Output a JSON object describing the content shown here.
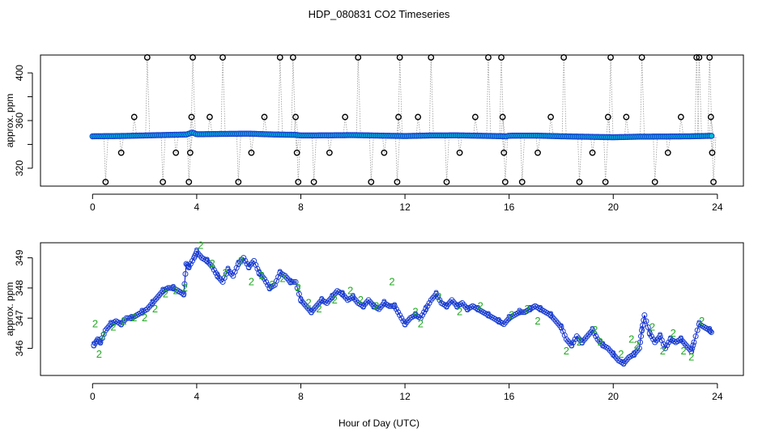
{
  "title": "HDP_080831  CO2 Timeseries",
  "xlabel": "Hour of Day (UTC)",
  "chart_data": [
    {
      "type": "scatter",
      "ylabel": "approx. ppm",
      "xlim": [
        -2,
        25
      ],
      "ylim": [
        305,
        415
      ],
      "xticks": [
        0,
        4,
        8,
        12,
        16,
        20,
        24
      ],
      "yticks": [
        320,
        340,
        360,
        380,
        400
      ],
      "ytick_labels": [
        "320",
        "",
        "360",
        "",
        "400"
      ],
      "colors": {
        "main": "#1a3fd0",
        "fill": "#00bcd4",
        "outlier": "#000000",
        "line": "#9a9a9a"
      },
      "baseline": [
        [
          0.0,
          346.8
        ],
        [
          1.0,
          347.0
        ],
        [
          2.0,
          347.5
        ],
        [
          3.0,
          348.0
        ],
        [
          3.6,
          348.3
        ],
        [
          3.85,
          350.0
        ],
        [
          4.0,
          348.5
        ],
        [
          5.0,
          348.8
        ],
        [
          6.0,
          349.0
        ],
        [
          7.0,
          348.3
        ],
        [
          7.8,
          348.0
        ],
        [
          8.0,
          347.5
        ],
        [
          9.0,
          347.6
        ],
        [
          10.0,
          347.8
        ],
        [
          11.0,
          347.4
        ],
        [
          12.0,
          347.0
        ],
        [
          13.0,
          347.5
        ],
        [
          14.0,
          347.6
        ],
        [
          15.0,
          347.2
        ],
        [
          15.9,
          346.8
        ],
        [
          16.0,
          347.3
        ],
        [
          17.0,
          347.4
        ],
        [
          18.0,
          346.8
        ],
        [
          19.0,
          346.4
        ],
        [
          20.0,
          346.0
        ],
        [
          21.0,
          346.5
        ],
        [
          22.0,
          346.6
        ],
        [
          23.0,
          346.8
        ],
        [
          23.8,
          347.2
        ]
      ],
      "outliers": [
        [
          0.5,
          308.5
        ],
        [
          1.1,
          333
        ],
        [
          1.6,
          363
        ],
        [
          2.1,
          413
        ],
        [
          2.7,
          308.5
        ],
        [
          3.2,
          333
        ],
        [
          3.7,
          308.5
        ],
        [
          3.75,
          333
        ],
        [
          3.8,
          363
        ],
        [
          3.85,
          413
        ],
        [
          4.5,
          363
        ],
        [
          5.0,
          413
        ],
        [
          5.6,
          308.5
        ],
        [
          6.1,
          333
        ],
        [
          6.6,
          363
        ],
        [
          7.2,
          413
        ],
        [
          7.7,
          413
        ],
        [
          7.8,
          363
        ],
        [
          7.85,
          333
        ],
        [
          7.9,
          308.5
        ],
        [
          8.5,
          308.5
        ],
        [
          9.1,
          333
        ],
        [
          9.7,
          363
        ],
        [
          10.2,
          413
        ],
        [
          10.7,
          308.5
        ],
        [
          11.2,
          333
        ],
        [
          11.7,
          308.5
        ],
        [
          11.75,
          363
        ],
        [
          11.8,
          413
        ],
        [
          12.5,
          363
        ],
        [
          13.0,
          413
        ],
        [
          13.6,
          308.5
        ],
        [
          14.1,
          333
        ],
        [
          14.7,
          363
        ],
        [
          15.2,
          413
        ],
        [
          15.7,
          413
        ],
        [
          15.75,
          363
        ],
        [
          15.8,
          333
        ],
        [
          15.85,
          308.5
        ],
        [
          16.5,
          308.5
        ],
        [
          17.1,
          333
        ],
        [
          17.6,
          363
        ],
        [
          18.1,
          413
        ],
        [
          18.7,
          308.5
        ],
        [
          19.2,
          333
        ],
        [
          19.7,
          308.5
        ],
        [
          19.8,
          363
        ],
        [
          19.9,
          413
        ],
        [
          20.5,
          363
        ],
        [
          21.1,
          413
        ],
        [
          21.6,
          308.5
        ],
        [
          22.1,
          333
        ],
        [
          22.6,
          363
        ],
        [
          23.2,
          413
        ],
        [
          23.3,
          413
        ],
        [
          23.7,
          413
        ],
        [
          23.75,
          363
        ],
        [
          23.8,
          333
        ],
        [
          23.85,
          308.5
        ]
      ]
    },
    {
      "type": "line",
      "ylabel": "approx. ppm",
      "xlim": [
        -2,
        25
      ],
      "ylim": [
        345.1,
        349.5
      ],
      "xticks": [
        0,
        4,
        8,
        12,
        16,
        20,
        24
      ],
      "yticks": [
        346,
        347,
        348,
        349
      ],
      "colors": {
        "label3": "#1a3fd0",
        "label2": "#22aa22",
        "line": "#0000cc"
      },
      "series": [
        {
          "label": "3",
          "points": [
            [
              0.05,
              346.1
            ],
            [
              0.2,
              346.3
            ],
            [
              0.3,
              346.2
            ],
            [
              0.5,
              346.6
            ],
            [
              0.7,
              346.8
            ],
            [
              0.9,
              346.9
            ],
            [
              1.1,
              346.8
            ],
            [
              1.3,
              347.0
            ],
            [
              1.5,
              347.0
            ],
            [
              1.7,
              347.1
            ],
            [
              1.9,
              347.2
            ],
            [
              2.1,
              347.3
            ],
            [
              2.3,
              347.5
            ],
            [
              2.5,
              347.7
            ],
            [
              2.7,
              347.9
            ],
            [
              2.9,
              348.0
            ],
            [
              3.1,
              348.0
            ],
            [
              3.3,
              347.9
            ],
            [
              3.5,
              347.8
            ],
            [
              3.6,
              348.8
            ],
            [
              3.7,
              348.7
            ],
            [
              3.9,
              349.0
            ],
            [
              4.0,
              349.2
            ],
            [
              4.2,
              349.0
            ],
            [
              4.4,
              348.9
            ],
            [
              4.6,
              348.7
            ],
            [
              4.8,
              348.4
            ],
            [
              5.0,
              348.2
            ],
            [
              5.2,
              348.6
            ],
            [
              5.4,
              348.4
            ],
            [
              5.6,
              348.8
            ],
            [
              5.8,
              349.0
            ],
            [
              6.0,
              348.7
            ],
            [
              6.2,
              348.9
            ],
            [
              6.4,
              348.5
            ],
            [
              6.6,
              348.3
            ],
            [
              6.8,
              348.0
            ],
            [
              7.0,
              348.1
            ],
            [
              7.2,
              348.5
            ],
            [
              7.4,
              348.4
            ],
            [
              7.6,
              348.2
            ],
            [
              7.8,
              348.2
            ],
            [
              8.0,
              347.6
            ],
            [
              8.2,
              347.4
            ],
            [
              8.4,
              347.2
            ],
            [
              8.6,
              347.4
            ],
            [
              8.8,
              347.6
            ],
            [
              9.0,
              347.5
            ],
            [
              9.2,
              347.7
            ],
            [
              9.4,
              347.9
            ],
            [
              9.6,
              347.8
            ],
            [
              9.8,
              347.6
            ],
            [
              10.0,
              347.7
            ],
            [
              10.2,
              347.5
            ],
            [
              10.4,
              347.4
            ],
            [
              10.6,
              347.6
            ],
            [
              10.8,
              347.4
            ],
            [
              11.0,
              347.3
            ],
            [
              11.2,
              347.5
            ],
            [
              11.4,
              347.4
            ],
            [
              11.6,
              347.4
            ],
            [
              11.8,
              347.1
            ],
            [
              12.0,
              346.8
            ],
            [
              12.2,
              347.0
            ],
            [
              12.4,
              347.1
            ],
            [
              12.6,
              347.0
            ],
            [
              12.8,
              347.3
            ],
            [
              13.0,
              347.6
            ],
            [
              13.2,
              347.8
            ],
            [
              13.4,
              347.5
            ],
            [
              13.6,
              347.4
            ],
            [
              13.8,
              347.6
            ],
            [
              14.0,
              347.4
            ],
            [
              14.2,
              347.5
            ],
            [
              14.4,
              347.3
            ],
            [
              14.6,
              347.4
            ],
            [
              14.8,
              347.3
            ],
            [
              15.0,
              347.2
            ],
            [
              15.2,
              347.1
            ],
            [
              15.4,
              347.0
            ],
            [
              15.6,
              346.9
            ],
            [
              15.8,
              346.8
            ],
            [
              16.0,
              347.0
            ],
            [
              16.2,
              347.1
            ],
            [
              16.4,
              347.2
            ],
            [
              16.6,
              347.2
            ],
            [
              16.8,
              347.3
            ],
            [
              17.0,
              347.4
            ],
            [
              17.2,
              347.3
            ],
            [
              17.4,
              347.2
            ],
            [
              17.6,
              347.1
            ],
            [
              17.8,
              346.9
            ],
            [
              18.0,
              346.7
            ],
            [
              18.2,
              346.3
            ],
            [
              18.4,
              346.1
            ],
            [
              18.6,
              346.4
            ],
            [
              18.8,
              346.2
            ],
            [
              19.0,
              346.4
            ],
            [
              19.2,
              346.6
            ],
            [
              19.4,
              346.3
            ],
            [
              19.6,
              346.1
            ],
            [
              19.8,
              346.0
            ],
            [
              20.0,
              345.8
            ],
            [
              20.2,
              345.6
            ],
            [
              20.4,
              345.5
            ],
            [
              20.6,
              345.7
            ],
            [
              20.8,
              345.8
            ],
            [
              21.0,
              346.0
            ],
            [
              21.1,
              346.6
            ],
            [
              21.2,
              347.1
            ],
            [
              21.4,
              346.5
            ],
            [
              21.6,
              346.2
            ],
            [
              21.8,
              346.4
            ],
            [
              22.0,
              346.0
            ],
            [
              22.2,
              346.3
            ],
            [
              22.4,
              346.2
            ],
            [
              22.6,
              346.3
            ],
            [
              22.8,
              346.1
            ],
            [
              23.0,
              345.9
            ],
            [
              23.1,
              346.2
            ],
            [
              23.3,
              346.8
            ],
            [
              23.5,
              346.7
            ],
            [
              23.7,
              346.6
            ],
            [
              23.8,
              346.5
            ]
          ]
        },
        {
          "label": "2",
          "points": [
            [
              0.1,
              346.8
            ],
            [
              0.25,
              345.8
            ],
            [
              0.4,
              346.4
            ],
            [
              0.8,
              346.7
            ],
            [
              1.2,
              346.9
            ],
            [
              1.6,
              347.0
            ],
            [
              2.0,
              347.0
            ],
            [
              2.4,
              347.3
            ],
            [
              2.8,
              347.8
            ],
            [
              3.2,
              347.9
            ],
            [
              3.55,
              348.0
            ],
            [
              4.15,
              349.4
            ],
            [
              4.6,
              348.8
            ],
            [
              5.1,
              348.5
            ],
            [
              5.7,
              348.9
            ],
            [
              6.1,
              348.2
            ],
            [
              6.5,
              348.4
            ],
            [
              6.9,
              348.1
            ],
            [
              7.3,
              348.3
            ],
            [
              7.9,
              348.0
            ],
            [
              8.3,
              347.5
            ],
            [
              8.7,
              347.3
            ],
            [
              9.3,
              347.6
            ],
            [
              9.9,
              347.9
            ],
            [
              10.3,
              347.6
            ],
            [
              10.9,
              347.4
            ],
            [
              11.5,
              348.2
            ],
            [
              12.4,
              347.2
            ],
            [
              12.6,
              346.8
            ],
            [
              13.3,
              347.7
            ],
            [
              14.1,
              347.2
            ],
            [
              14.9,
              347.4
            ],
            [
              16.1,
              347.1
            ],
            [
              16.7,
              347.3
            ],
            [
              17.1,
              346.9
            ],
            [
              18.2,
              345.9
            ],
            [
              18.7,
              346.2
            ],
            [
              19.3,
              346.6
            ],
            [
              19.5,
              346.2
            ],
            [
              20.3,
              345.8
            ],
            [
              20.7,
              346.3
            ],
            [
              20.9,
              346.1
            ],
            [
              21.5,
              346.7
            ],
            [
              21.9,
              345.9
            ],
            [
              22.3,
              346.5
            ],
            [
              22.7,
              345.9
            ],
            [
              23.0,
              345.7
            ],
            [
              23.4,
              346.9
            ]
          ]
        }
      ]
    }
  ]
}
